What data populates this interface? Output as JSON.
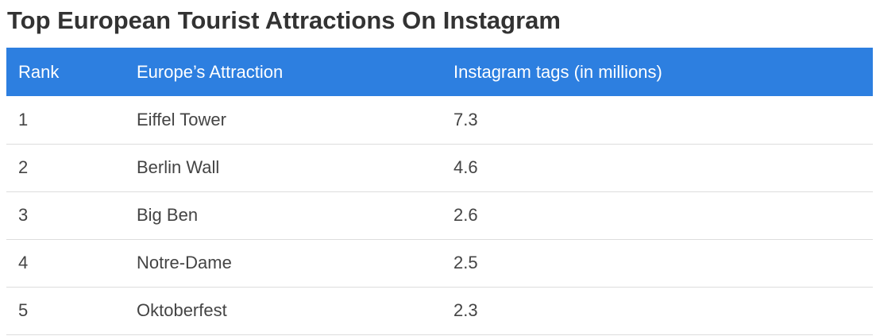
{
  "title": "Top European Tourist Attractions On Instagram",
  "table": {
    "headers": [
      "Rank",
      "Europe’s Attraction",
      "Instagram tags (in millions)"
    ],
    "rows": [
      [
        "1",
        "Eiffel Tower",
        "7.3"
      ],
      [
        "2",
        "Berlin Wall",
        "4.6"
      ],
      [
        "3",
        "Big Ben",
        "2.6"
      ],
      [
        "4",
        "Notre-Dame",
        "2.5"
      ],
      [
        "5",
        "Oktoberfest",
        "2.3"
      ]
    ]
  },
  "colors": {
    "header_background": "#2d7fe0",
    "header_text": "#ffffff",
    "row_divider": "#dddddd"
  }
}
